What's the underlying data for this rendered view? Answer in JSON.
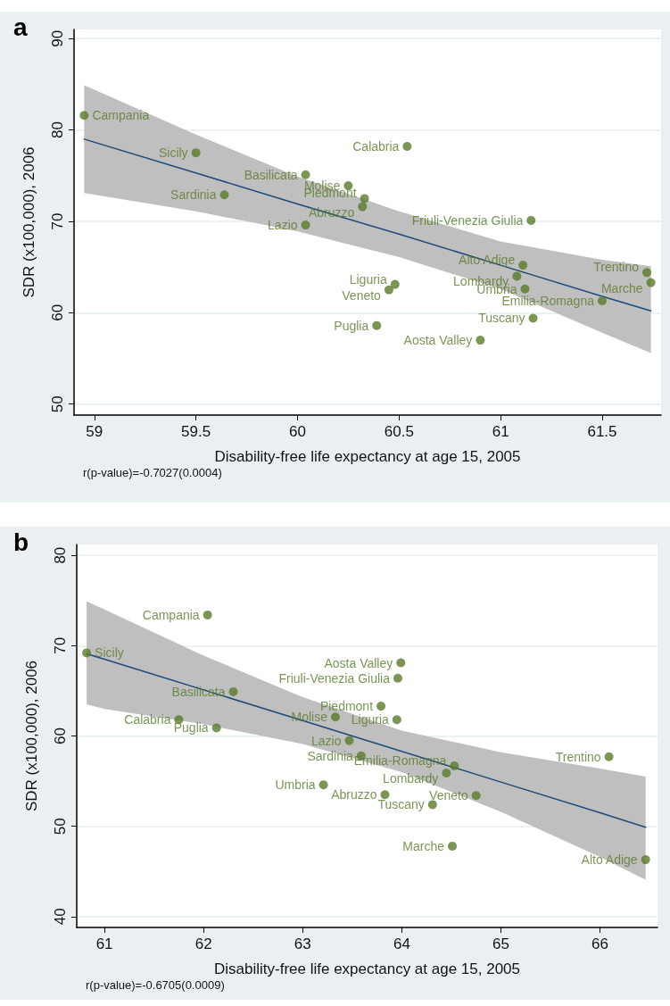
{
  "chart_data": [
    {
      "type": "scatter",
      "title": "a",
      "xlabel": "Disability-free life expectancy at age 15, 2005",
      "ylabel": "SDR (x100,000), 2006",
      "annotations": [
        "r(p-value)=-0.7027(0.0004)"
      ],
      "xlim": [
        58.9,
        61.79
      ],
      "xticks": [
        59,
        59.5,
        60,
        60.5,
        61,
        61.5
      ],
      "ylim": [
        48.8,
        91
      ],
      "yticks": [
        50,
        60,
        70,
        80,
        90
      ],
      "grid": "y",
      "legend": false,
      "marker": "circle",
      "line_style": "solid",
      "series": [
        {
          "type": "line",
          "marker": "none",
          "color": "#1f4a78",
          "x": [
            58.95,
            59.5,
            60,
            60.5,
            61,
            61.5,
            61.74
          ],
          "values": [
            79.0,
            75.3,
            71.9,
            68.6,
            65.2,
            61.8,
            60.2
          ],
          "lower": [
            73.1,
            71.1,
            68.9,
            66.1,
            62.6,
            57.8,
            55.6
          ],
          "upper": [
            84.9,
            79.5,
            74.9,
            71.1,
            67.8,
            65.8,
            65.1
          ]
        },
        {
          "name": "Campania",
          "color": "#5a7a2a",
          "x": [
            58.95
          ],
          "values": [
            81.6
          ]
        },
        {
          "name": "Sicily",
          "color": "#5a7a2a",
          "x": [
            59.5
          ],
          "values": [
            77.5
          ]
        },
        {
          "name": "Sardinia",
          "color": "#5a7a2a",
          "x": [
            59.64
          ],
          "values": [
            72.9
          ]
        },
        {
          "name": "Basilicata",
          "color": "#5a7a2a",
          "x": [
            60.04
          ],
          "values": [
            75.1
          ]
        },
        {
          "name": "Lazio",
          "color": "#5a7a2a",
          "x": [
            60.04
          ],
          "values": [
            69.6
          ]
        },
        {
          "name": "Molise",
          "color": "#5a7a2a",
          "x": [
            60.25
          ],
          "values": [
            73.9
          ]
        },
        {
          "name": "Piedmont",
          "color": "#5a7a2a",
          "x": [
            60.33
          ],
          "values": [
            72.5
          ]
        },
        {
          "name": "Abruzzo",
          "color": "#5a7a2a",
          "x": [
            60.32
          ],
          "values": [
            71.6
          ]
        },
        {
          "name": "Calabria",
          "color": "#5a7a2a",
          "x": [
            60.54
          ],
          "values": [
            78.2
          ]
        },
        {
          "name": "Friuli-Venezia Giulia",
          "color": "#5a7a2a",
          "x": [
            61.15
          ],
          "values": [
            70.1
          ]
        },
        {
          "name": "Liguria",
          "color": "#5a7a2a",
          "x": [
            60.48
          ],
          "values": [
            63.1
          ]
        },
        {
          "name": "Veneto",
          "color": "#5a7a2a",
          "x": [
            60.45
          ],
          "values": [
            62.5
          ]
        },
        {
          "name": "Puglia",
          "color": "#5a7a2a",
          "x": [
            60.39
          ],
          "values": [
            58.6
          ]
        },
        {
          "name": "Aosta Valley",
          "color": "#5a7a2a",
          "x": [
            60.9
          ],
          "values": [
            57.0
          ]
        },
        {
          "name": "Tuscany",
          "color": "#5a7a2a",
          "x": [
            61.16
          ],
          "values": [
            59.4
          ]
        },
        {
          "name": "Alto Adige",
          "color": "#5a7a2a",
          "x": [
            61.11
          ],
          "values": [
            65.2
          ]
        },
        {
          "name": "Lombardy",
          "color": "#5a7a2a",
          "x": [
            61.08
          ],
          "values": [
            64.0
          ]
        },
        {
          "name": "Umbria",
          "color": "#5a7a2a",
          "x": [
            61.12
          ],
          "values": [
            62.6
          ]
        },
        {
          "name": "Emilia-Romagna",
          "color": "#5a7a2a",
          "x": [
            61.5
          ],
          "values": [
            61.3
          ]
        },
        {
          "name": "Trentino",
          "color": "#5a7a2a",
          "x": [
            61.72
          ],
          "values": [
            64.4
          ]
        },
        {
          "name": "Marche",
          "color": "#5a7a2a",
          "x": [
            61.74
          ],
          "values": [
            63.3
          ]
        }
      ]
    },
    {
      "type": "scatter",
      "title": "b",
      "xlabel": "Disability-free life expectancy at age 15, 2005",
      "ylabel": "SDR (x100,000), 2006",
      "annotations": [
        "r(p-value)=-0.6705(0.0009)"
      ],
      "xlim": [
        60.72,
        66.58
      ],
      "xticks": [
        61,
        62,
        63,
        64,
        65,
        66
      ],
      "ylim": [
        38.8,
        81.2
      ],
      "yticks": [
        40,
        50,
        60,
        70,
        80
      ],
      "grid": "y",
      "legend": false,
      "marker": "circle",
      "line_style": "solid",
      "series": [
        {
          "type": "line",
          "marker": "none",
          "color": "#1f4a78",
          "x": [
            60.82,
            61,
            62,
            63,
            64,
            65,
            66,
            66.46
          ],
          "values": [
            69.1,
            68.5,
            65.1,
            61.7,
            58.3,
            54.9,
            51.5,
            49.9
          ],
          "lower": [
            63.5,
            63.0,
            61.3,
            59.1,
            56.0,
            51.6,
            46.6,
            44.1
          ],
          "upper": [
            74.9,
            74.0,
            68.9,
            64.3,
            60.6,
            58.2,
            56.4,
            55.5
          ]
        },
        {
          "name": "Campania",
          "color": "#5a7a2a",
          "x": [
            62.04
          ],
          "values": [
            73.4
          ]
        },
        {
          "name": "Sicily",
          "color": "#5a7a2a",
          "x": [
            60.82
          ],
          "values": [
            69.2
          ]
        },
        {
          "name": "Aosta Valley",
          "color": "#5a7a2a",
          "x": [
            63.99
          ],
          "values": [
            68.1
          ]
        },
        {
          "name": "Friuli-Venezia Giulia",
          "color": "#5a7a2a",
          "x": [
            63.96
          ],
          "values": [
            66.4
          ]
        },
        {
          "name": "Basilicata",
          "color": "#5a7a2a",
          "x": [
            62.3
          ],
          "values": [
            64.9
          ]
        },
        {
          "name": "Piedmont",
          "color": "#5a7a2a",
          "x": [
            63.79
          ],
          "values": [
            63.3
          ]
        },
        {
          "name": "Molise",
          "color": "#5a7a2a",
          "x": [
            63.33
          ],
          "values": [
            62.1
          ]
        },
        {
          "name": "Liguria",
          "color": "#5a7a2a",
          "x": [
            63.95
          ],
          "values": [
            61.8
          ]
        },
        {
          "name": "Calabria",
          "color": "#5a7a2a",
          "x": [
            61.75
          ],
          "values": [
            61.8
          ]
        },
        {
          "name": "Puglia",
          "color": "#5a7a2a",
          "x": [
            62.13
          ],
          "values": [
            60.9
          ]
        },
        {
          "name": "Lazio",
          "color": "#5a7a2a",
          "x": [
            63.47
          ],
          "values": [
            59.5
          ]
        },
        {
          "name": "Sardinia",
          "color": "#5a7a2a",
          "x": [
            63.59
          ],
          "values": [
            57.8
          ]
        },
        {
          "name": "Trentino",
          "color": "#5a7a2a",
          "x": [
            66.09
          ],
          "values": [
            57.7
          ]
        },
        {
          "name": "Emilia-Romagna",
          "color": "#5a7a2a",
          "x": [
            64.53
          ],
          "values": [
            56.7
          ]
        },
        {
          "name": "Lombardy",
          "color": "#5a7a2a",
          "x": [
            64.45
          ],
          "values": [
            55.9
          ]
        },
        {
          "name": "Umbria",
          "color": "#5a7a2a",
          "x": [
            63.21
          ],
          "values": [
            54.6
          ]
        },
        {
          "name": "Abruzzo",
          "color": "#5a7a2a",
          "x": [
            63.83
          ],
          "values": [
            53.5
          ]
        },
        {
          "name": "Tuscany",
          "color": "#5a7a2a",
          "x": [
            64.31
          ],
          "values": [
            52.4
          ]
        },
        {
          "name": "Veneto",
          "color": "#5a7a2a",
          "x": [
            64.75
          ],
          "values": [
            53.4
          ]
        },
        {
          "name": "Marche",
          "color": "#5a7a2a",
          "x": [
            64.51
          ],
          "values": [
            47.8
          ]
        },
        {
          "name": "Alto Adige",
          "color": "#5a7a2a",
          "x": [
            66.46
          ],
          "values": [
            46.3
          ]
        }
      ]
    }
  ]
}
